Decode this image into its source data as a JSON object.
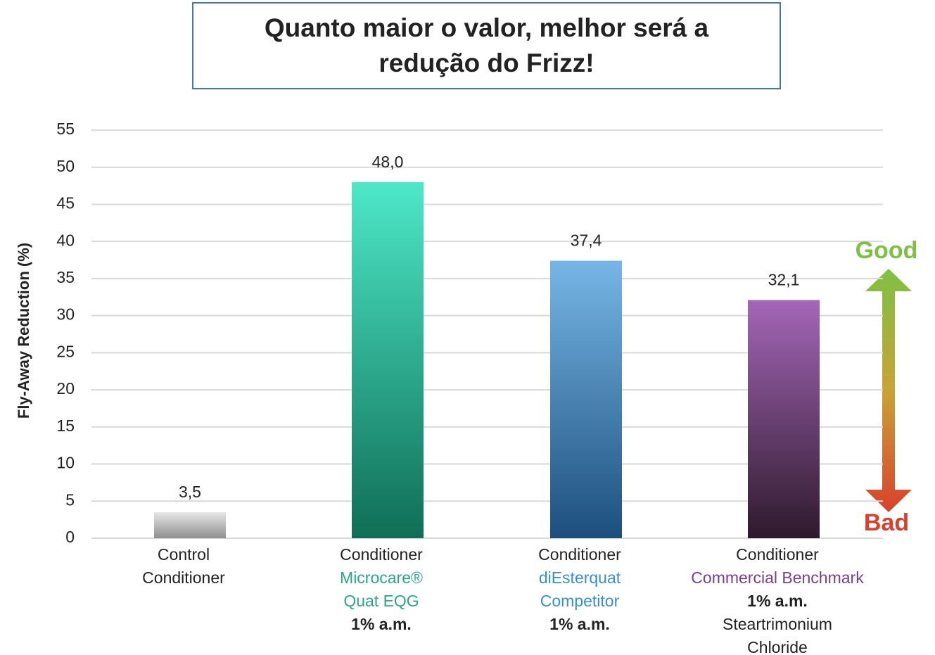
{
  "chart_data": {
    "type": "bar",
    "title": "Quanto maior o valor, melhor será a\nredução do Frizz!",
    "ylabel": "Fly-Away Reduction (%)",
    "categories": [
      [
        {
          "text": "Control"
        },
        {
          "text": "Conditioner"
        }
      ],
      [
        {
          "text": "Conditioner"
        },
        {
          "text": "Microcare®",
          "color": "#2aa88a"
        },
        {
          "text": "Quat EQG",
          "color": "#2aa88a"
        },
        {
          "text": "1% a.m.",
          "bold": true
        }
      ],
      [
        {
          "text": "Conditioner"
        },
        {
          "text": "diEsterquat",
          "color": "#3a8fd0"
        },
        {
          "text": "Competitor",
          "color": "#3a8fd0"
        },
        {
          "text": "1% a.m.",
          "bold": true
        }
      ],
      [
        {
          "text": "Conditioner"
        },
        {
          "text": "Commercial Benchmark",
          "color": "#7b3f8c"
        },
        {
          "text": "1% a.m.",
          "bold": true
        },
        {
          "text": "Steartrimonium"
        },
        {
          "text": "Chloride"
        }
      ]
    ],
    "values": [
      3.5,
      48.0,
      37.4,
      32.1
    ],
    "value_labels": [
      "3,5",
      "48,0",
      "37,4",
      "32,1"
    ],
    "colors": [
      [
        "#e6e6e6",
        "#8f8f8f"
      ],
      [
        "#4de8c8",
        "#0f6e56"
      ],
      [
        "#76b6e6",
        "#1d4f7d"
      ],
      [
        "#a466b8",
        "#2e1a2c"
      ]
    ],
    "ylim": [
      0,
      55
    ],
    "yticks": [
      0,
      5,
      10,
      15,
      20,
      25,
      30,
      35,
      40,
      45,
      50,
      55
    ],
    "grid": true,
    "annotations": [
      {
        "text": "Good",
        "color": "#7dc142"
      },
      {
        "text": "Bad",
        "color": "#d9412b"
      }
    ]
  }
}
